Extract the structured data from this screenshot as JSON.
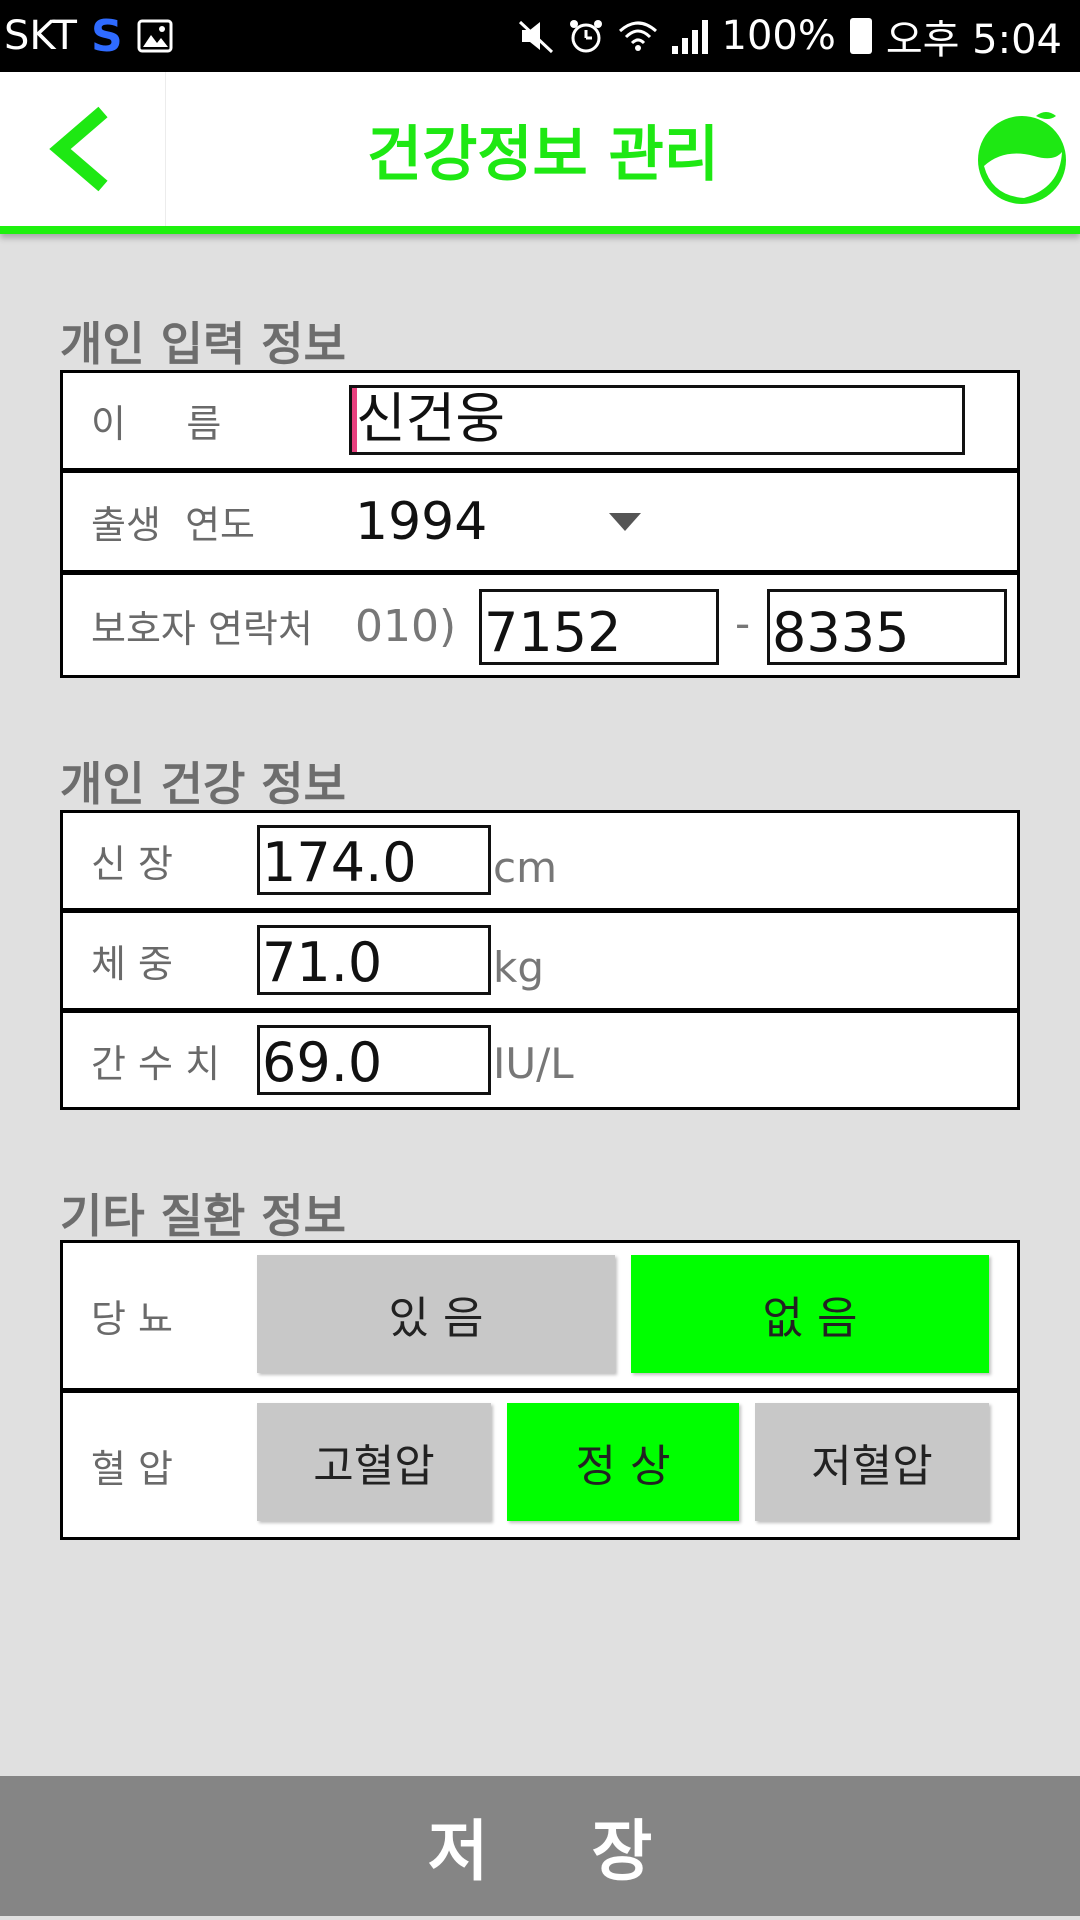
{
  "status_bar": {
    "carrier": "SKT",
    "battery_percent": "100%",
    "time": "오후 5:04"
  },
  "header": {
    "title": "건강정보 관리"
  },
  "personal_info": {
    "section_title": "개인 입력 정보",
    "name_label": "이     름",
    "name_value": "신건웅",
    "birth_year_label": "출생  연도",
    "birth_year_value": "1994",
    "guardian_label": "보호자 연락처",
    "phone_prefix": "010)",
    "phone_middle": "7152",
    "phone_separator": "-",
    "phone_last": "8335"
  },
  "health_info": {
    "section_title": "개인 건강 정보",
    "height_label": "신 장",
    "height_value": "174.0",
    "height_unit": "cm",
    "weight_label": "체 중",
    "weight_value": "71.0",
    "weight_unit": "kg",
    "liver_label": "간 수 치",
    "liver_value": "69.0",
    "liver_unit": "IU/L"
  },
  "disease_info": {
    "section_title": "기타 질환 정보",
    "diabetes_label": "당 뇨",
    "diabetes_yes": "있 음",
    "diabetes_no": "없 음",
    "diabetes_selected": "없 음",
    "bp_label": "혈 압",
    "bp_high": "고혈압",
    "bp_normal": "정 상",
    "bp_low": "저혈압",
    "bp_selected": "정 상"
  },
  "footer": {
    "save_label": "저 장"
  },
  "colors": {
    "accent": "#1ef10e",
    "selected": "#00ff00",
    "unselected": "#c8c8c8",
    "save_bar": "#858585"
  }
}
